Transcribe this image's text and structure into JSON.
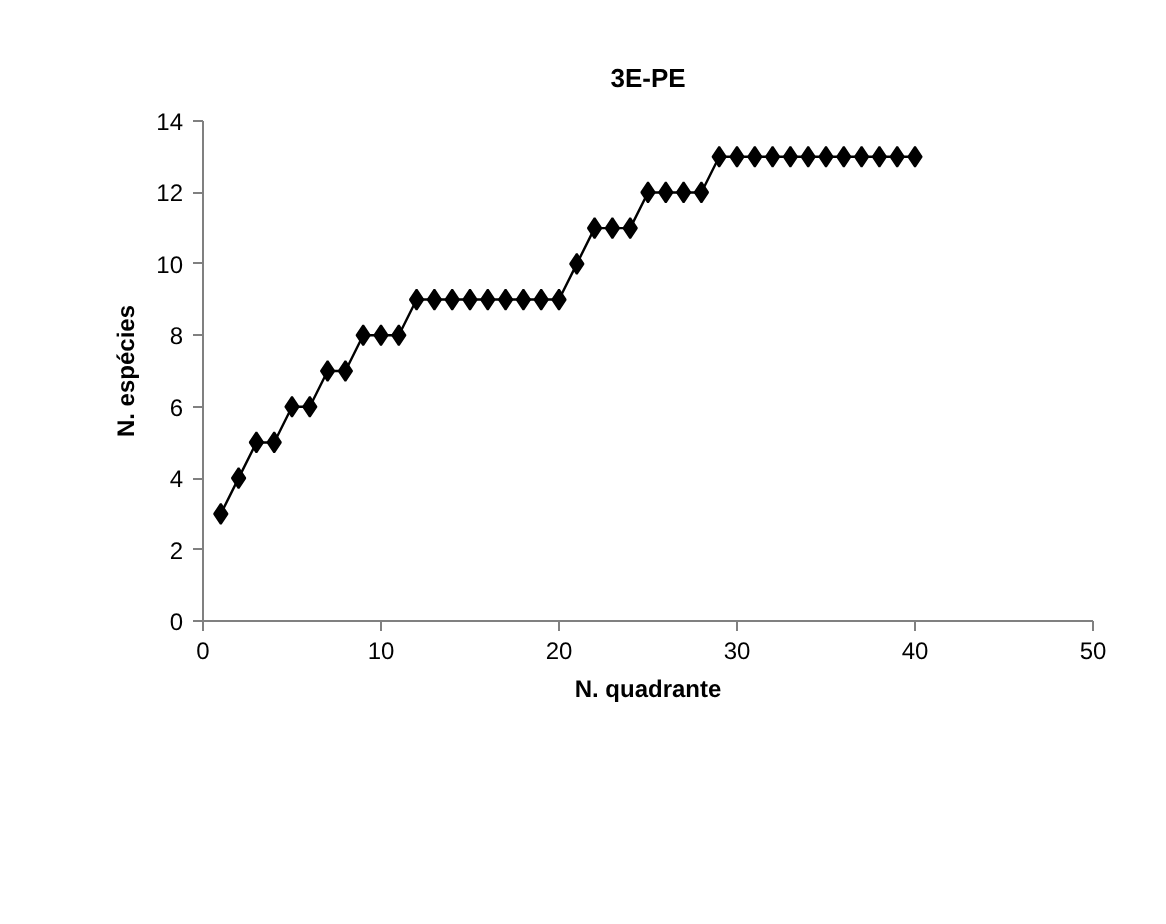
{
  "chart_data": {
    "type": "line",
    "title": "3E-PE",
    "xlabel": "N. quadrante",
    "ylabel": "N. espécies",
    "x": [
      1,
      2,
      3,
      4,
      5,
      6,
      7,
      8,
      9,
      10,
      11,
      12,
      13,
      14,
      15,
      16,
      17,
      18,
      19,
      20,
      21,
      22,
      23,
      24,
      25,
      26,
      27,
      28,
      29,
      30,
      31,
      32,
      33,
      34,
      35,
      36,
      37,
      38,
      39,
      40
    ],
    "series": [
      {
        "color": "#000000",
        "values": [
          3,
          4,
          5,
          5,
          6,
          6,
          7,
          7,
          8,
          8,
          8,
          9,
          9,
          9,
          9,
          9,
          9,
          9,
          9,
          9,
          10,
          11,
          11,
          11,
          12,
          12,
          12,
          12,
          13,
          13,
          13,
          13,
          13,
          13,
          13,
          13,
          13,
          13,
          13,
          13
        ]
      }
    ],
    "xlim": [
      0,
      50
    ],
    "xticks": [
      0,
      10,
      20,
      30,
      40,
      50
    ],
    "ylim": [
      0,
      14
    ],
    "yticks": [
      0,
      2,
      4,
      6,
      8,
      10,
      12,
      14
    ],
    "marker": "diamond",
    "line_style": "solid",
    "grid": false
  }
}
